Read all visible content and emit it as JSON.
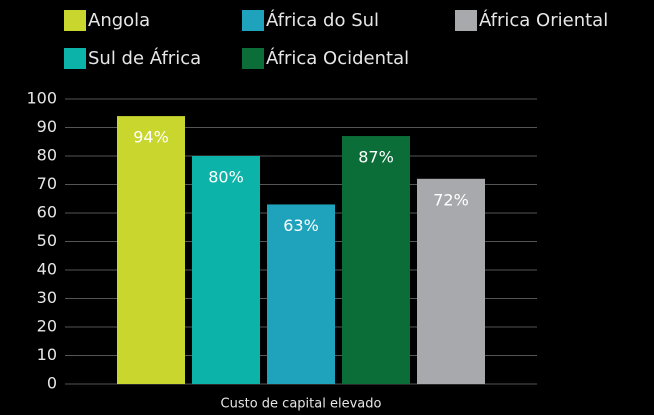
{
  "chart_data": {
    "type": "bar",
    "categories": [
      "Custo de capital elevado"
    ],
    "series": [
      {
        "name": "Angola",
        "color": "#c8d62e",
        "values": [
          94
        ],
        "value_labels": [
          "94%"
        ]
      },
      {
        "name": "Sul de África",
        "color": "#0bb3a8",
        "values": [
          80
        ],
        "value_labels": [
          "80%"
        ]
      },
      {
        "name": "África do Sul",
        "color": "#1fa3bd",
        "values": [
          63
        ],
        "value_labels": [
          "63%"
        ]
      },
      {
        "name": "África Ocidental",
        "color": "#0b6e38",
        "values": [
          87
        ],
        "value_labels": [
          "87%"
        ]
      },
      {
        "name": "África Oriental",
        "color": "#a7a9ac",
        "values": [
          72
        ],
        "value_labels": [
          "72%"
        ]
      }
    ],
    "ylim": [
      0,
      100
    ],
    "yticks": [
      0,
      10,
      20,
      30,
      40,
      50,
      60,
      70,
      80,
      90,
      100
    ],
    "grid": true
  }
}
